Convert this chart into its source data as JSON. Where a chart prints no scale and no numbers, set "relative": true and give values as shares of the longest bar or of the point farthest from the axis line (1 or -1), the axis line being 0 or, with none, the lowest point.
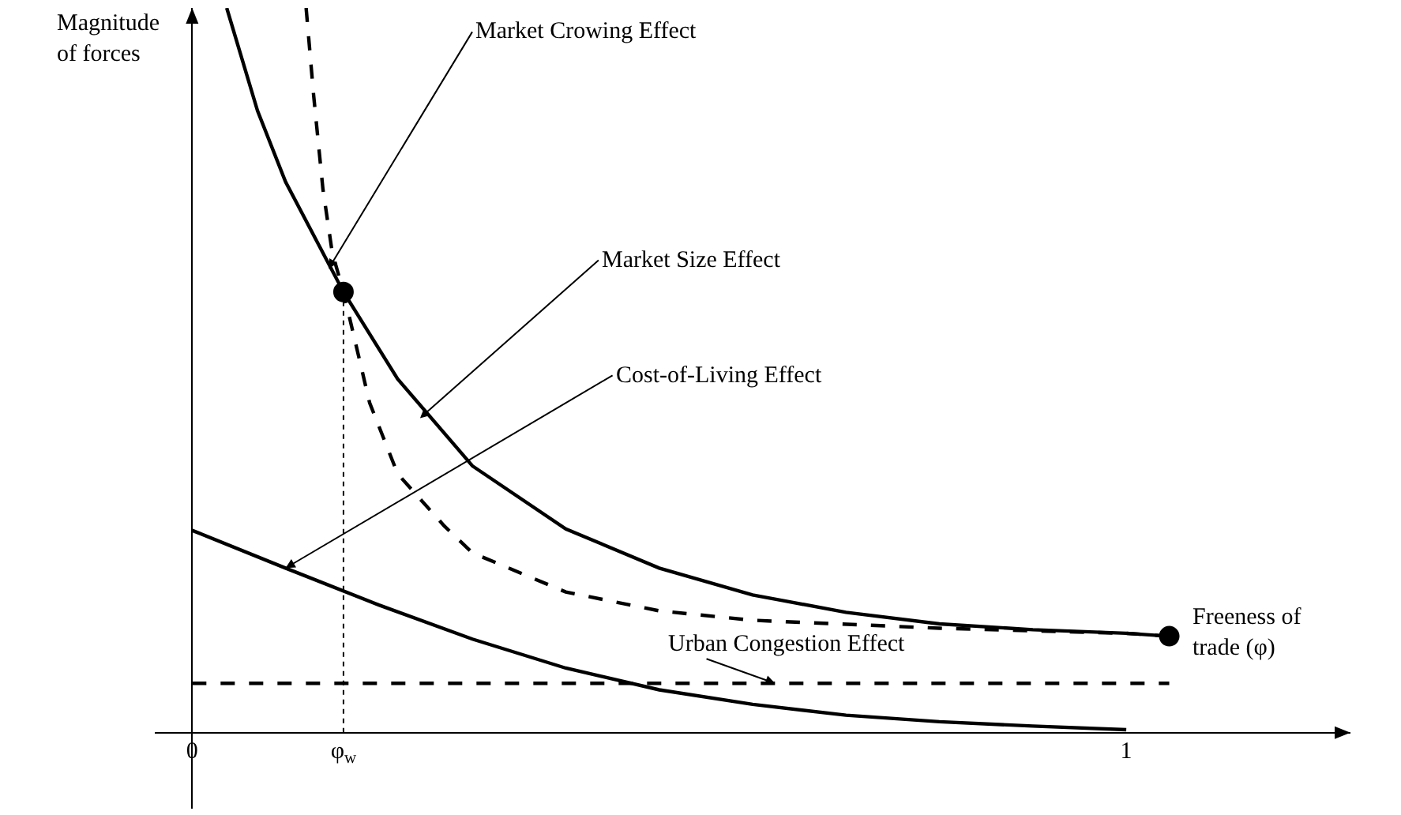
{
  "chart_data": {
    "type": "line",
    "relative": true,
    "xlabel": "Freeness of\ntrade (φ)",
    "ylabel": "Magnitude\nof forces",
    "xlim": [
      -0.04,
      1.24
    ],
    "xticks": [
      0,
      {
        "value": 0.162,
        "label": "φ$_{w}$"
      },
      1
    ],
    "grid": false,
    "marker": "none",
    "series": [
      {
        "color": "#000000",
        "line_style": "solid",
        "x": [
          0.037,
          0.07,
          0.1,
          0.162,
          0.22,
          0.3,
          0.4,
          0.5,
          0.6,
          0.7,
          0.8,
          0.9,
          1.0,
          1.046
        ],
        "values": [
          1.0,
          0.858,
          0.76,
          0.608,
          0.488,
          0.368,
          0.281,
          0.227,
          0.19,
          0.166,
          0.15,
          0.142,
          0.137,
          0.133
        ]
      },
      {
        "color": "#000000",
        "line_style": "dashed",
        "x": [
          0.122,
          0.13,
          0.14,
          0.15,
          0.162,
          0.19,
          0.22,
          0.27,
          0.3,
          0.4,
          0.5,
          0.6,
          0.8,
          1.0,
          1.046
        ],
        "values": [
          1.0,
          0.88,
          0.75,
          0.662,
          0.608,
          0.455,
          0.357,
          0.285,
          0.248,
          0.194,
          0.168,
          0.155,
          0.144,
          0.137,
          0.133
        ]
      },
      {
        "color": "#000000",
        "line_style": "solid",
        "x": [
          0,
          0.1,
          0.2,
          0.3,
          0.4,
          0.5,
          0.6,
          0.7,
          0.8,
          0.9,
          1.0
        ],
        "values": [
          0.279,
          0.227,
          0.176,
          0.129,
          0.089,
          0.059,
          0.039,
          0.024,
          0.015,
          0.009,
          0.004
        ]
      },
      {
        "color": "#000000",
        "line_style": "dashed",
        "x": [
          0,
          1.046
        ],
        "values": [
          0.068,
          0.068
        ]
      },
      {
        "color": "#000000",
        "line_style": "dotted",
        "x": [
          0.162,
          0.162
        ],
        "values": [
          0,
          0.608
        ]
      },
      {
        "type": "scatter",
        "color": "#000000",
        "marker": "circle",
        "x": [
          0.162,
          1.046
        ],
        "values": [
          0.608,
          0.133
        ]
      }
    ],
    "annotations": [
      {
        "text": "Market Crowing Effect",
        "x": 0.146,
        "y": 0.64
      },
      {
        "text": "Market Size Effect",
        "x": 0.244,
        "y": 0.434
      },
      {
        "text": "Cost-of-Living Effect",
        "x": 0.1,
        "y": 0.227
      },
      {
        "text": "Urban Congestion Effect",
        "x": 0.624,
        "y": 0.068
      }
    ]
  }
}
